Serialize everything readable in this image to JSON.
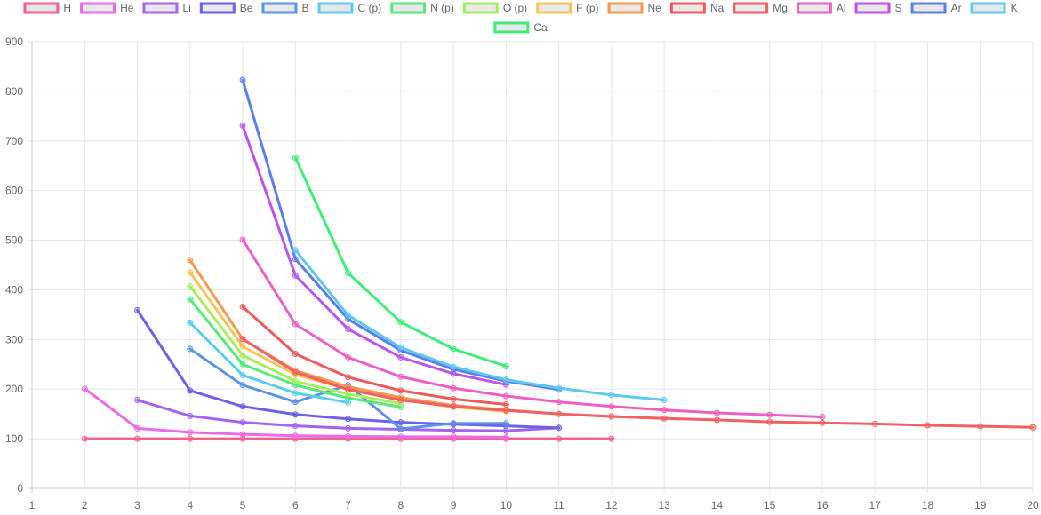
{
  "chart_data": {
    "type": "line",
    "title": "",
    "xlabel": "",
    "ylabel": "",
    "xlim": [
      1,
      20
    ],
    "ylim": [
      0,
      900
    ],
    "x_ticks": [
      "1",
      "2",
      "3",
      "4",
      "5",
      "6",
      "7",
      "8",
      "9",
      "10",
      "11",
      "12",
      "13",
      "14",
      "15",
      "16",
      "17",
      "18",
      "19",
      "20"
    ],
    "y_ticks": [
      "0",
      "100",
      "200",
      "300",
      "400",
      "500",
      "600",
      "700",
      "800",
      "900"
    ],
    "grid": true,
    "legend_position": "top",
    "series": [
      {
        "name": "H",
        "color": "#f0628c",
        "points": [
          [
            2,
            100
          ],
          [
            3,
            100
          ],
          [
            4,
            100
          ],
          [
            5,
            100
          ],
          [
            6,
            100
          ],
          [
            7,
            100
          ],
          [
            8,
            100
          ],
          [
            9,
            100
          ],
          [
            10,
            100
          ],
          [
            11,
            100
          ],
          [
            12,
            100
          ]
        ]
      },
      {
        "name": "He",
        "color": "#e96be6",
        "points": [
          [
            2,
            201
          ],
          [
            3,
            121
          ],
          [
            4,
            113
          ],
          [
            5,
            109
          ],
          [
            6,
            106
          ],
          [
            7,
            105
          ],
          [
            8,
            104
          ],
          [
            9,
            104
          ],
          [
            10,
            103
          ]
        ]
      },
      {
        "name": "Li",
        "color": "#a363ee",
        "points": [
          [
            3,
            178
          ],
          [
            4,
            146
          ],
          [
            5,
            133
          ],
          [
            6,
            126
          ],
          [
            7,
            121
          ],
          [
            8,
            119
          ],
          [
            9,
            117
          ],
          [
            10,
            116
          ],
          [
            11,
            122
          ]
        ]
      },
      {
        "name": "Be",
        "color": "#6a62e8",
        "points": [
          [
            3,
            359
          ],
          [
            4,
            197
          ],
          [
            5,
            165
          ],
          [
            6,
            149
          ],
          [
            7,
            140
          ],
          [
            8,
            133
          ],
          [
            9,
            129
          ],
          [
            10,
            126
          ],
          [
            11,
            122
          ]
        ]
      },
      {
        "name": "B",
        "color": "#5b93e6",
        "points": [
          [
            4,
            281
          ],
          [
            5,
            208
          ],
          [
            6,
            174
          ],
          [
            7,
            208
          ],
          [
            8,
            120
          ],
          [
            9,
            131
          ],
          [
            10,
            131
          ]
        ]
      },
      {
        "name": "C (p)",
        "color": "#5ccdef",
        "points": [
          [
            4,
            334
          ],
          [
            5,
            228
          ],
          [
            6,
            192
          ],
          [
            7,
            173
          ]
        ]
      },
      {
        "name": "N (p)",
        "color": "#56e97a",
        "points": [
          [
            4,
            381
          ],
          [
            5,
            250
          ],
          [
            6,
            208
          ],
          [
            7,
            182
          ],
          [
            8,
            164
          ]
        ]
      },
      {
        "name": "O (p)",
        "color": "#a6ef5c",
        "points": [
          [
            4,
            407
          ],
          [
            5,
            268
          ],
          [
            6,
            216
          ],
          [
            7,
            190
          ],
          [
            8,
            171
          ]
        ]
      },
      {
        "name": "F (p)",
        "color": "#f5c55a",
        "points": [
          [
            4,
            435
          ],
          [
            5,
            286
          ],
          [
            6,
            229
          ],
          [
            7,
            200
          ],
          [
            8,
            178
          ],
          [
            9,
            164
          ],
          [
            10,
            155
          ]
        ]
      },
      {
        "name": "Ne",
        "color": "#f39752",
        "points": [
          [
            4,
            460
          ],
          [
            5,
            301
          ],
          [
            6,
            237
          ],
          [
            7,
            205
          ],
          [
            8,
            183
          ],
          [
            9,
            167
          ],
          [
            10,
            158
          ],
          [
            11,
            150
          ],
          [
            12,
            145
          ],
          [
            13,
            141
          ]
        ]
      },
      {
        "name": "Na",
        "color": "#ec5b5b",
        "points": [
          [
            5,
            366
          ],
          [
            6,
            271
          ],
          [
            7,
            224
          ],
          [
            8,
            197
          ],
          [
            9,
            180
          ],
          [
            10,
            169
          ]
        ]
      },
      {
        "name": "Mg",
        "color": "#ef6163",
        "points": [
          [
            5,
            301
          ],
          [
            6,
            234
          ],
          [
            7,
            199
          ],
          [
            8,
            178
          ],
          [
            9,
            165
          ],
          [
            10,
            157
          ],
          [
            11,
            150
          ],
          [
            12,
            145
          ],
          [
            13,
            141
          ],
          [
            14,
            138
          ],
          [
            15,
            134
          ],
          [
            16,
            132
          ],
          [
            17,
            130
          ],
          [
            18,
            127
          ],
          [
            19,
            125
          ],
          [
            20,
            123
          ]
        ]
      },
      {
        "name": "Al",
        "color": "#ee5fc4",
        "points": [
          [
            5,
            501
          ],
          [
            6,
            331
          ],
          [
            7,
            264
          ],
          [
            8,
            225
          ],
          [
            9,
            202
          ],
          [
            10,
            186
          ],
          [
            11,
            174
          ],
          [
            12,
            165
          ],
          [
            13,
            158
          ],
          [
            14,
            152
          ],
          [
            15,
            148
          ],
          [
            16,
            144
          ]
        ]
      },
      {
        "name": "S",
        "color": "#bb54eb",
        "points": [
          [
            5,
            731
          ],
          [
            6,
            429
          ],
          [
            7,
            321
          ],
          [
            8,
            264
          ],
          [
            9,
            231
          ],
          [
            10,
            209
          ]
        ]
      },
      {
        "name": "Ar",
        "color": "#5b7fea",
        "points": [
          [
            5,
            823
          ],
          [
            6,
            462
          ],
          [
            7,
            341
          ],
          [
            8,
            278
          ],
          [
            9,
            240
          ],
          [
            10,
            216
          ],
          [
            11,
            199
          ]
        ]
      },
      {
        "name": "K",
        "color": "#5fc7f0",
        "points": [
          [
            6,
            480
          ],
          [
            7,
            349
          ],
          [
            8,
            284
          ],
          [
            9,
            245
          ],
          [
            10,
            219
          ],
          [
            11,
            202
          ],
          [
            12,
            188
          ],
          [
            13,
            178
          ]
        ]
      },
      {
        "name": "Ca",
        "color": "#3ded78",
        "points": [
          [
            6,
            666
          ],
          [
            7,
            434
          ],
          [
            8,
            335
          ],
          [
            9,
            281
          ],
          [
            10,
            246
          ]
        ]
      }
    ]
  }
}
